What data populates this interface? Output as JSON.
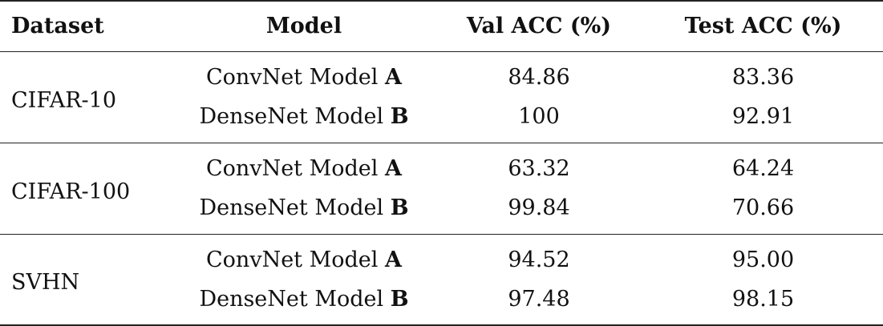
{
  "headers": {
    "dataset": "Dataset",
    "model": "Model",
    "val_acc": "Val ACC (%)",
    "test_acc": "Test ACC (%)"
  },
  "groups": [
    {
      "dataset": "CIFAR-10",
      "rows": [
        {
          "model_name": "ConvNet Model",
          "model_letter": "A",
          "val": "84.86",
          "test": "83.36"
        },
        {
          "model_name": "DenseNet Model",
          "model_letter": "B",
          "val": "100",
          "test": "92.91"
        }
      ]
    },
    {
      "dataset": "CIFAR-100",
      "rows": [
        {
          "model_name": "ConvNet Model",
          "model_letter": "A",
          "val": "63.32",
          "test": "64.24"
        },
        {
          "model_name": "DenseNet Model",
          "model_letter": "B",
          "val": "99.84",
          "test": "70.66"
        }
      ]
    },
    {
      "dataset": "SVHN",
      "rows": [
        {
          "model_name": "ConvNet Model",
          "model_letter": "A",
          "val": "94.52",
          "test": "95.00"
        },
        {
          "model_name": "DenseNet Model",
          "model_letter": "B",
          "val": "97.48",
          "test": "98.15"
        }
      ]
    }
  ]
}
